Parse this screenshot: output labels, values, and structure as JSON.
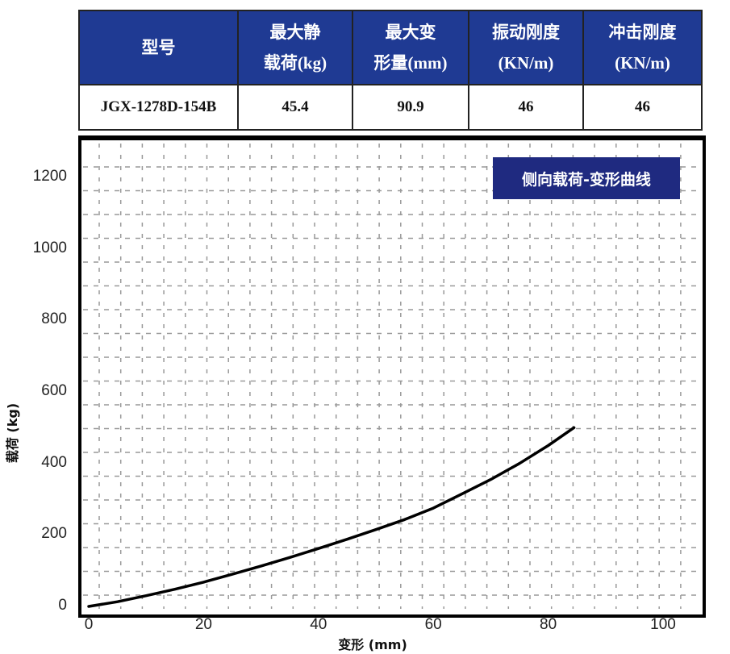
{
  "table": {
    "headers": [
      {
        "line1": "型号",
        "line2": ""
      },
      {
        "line1": "最大静",
        "line2": "载荷(kg)"
      },
      {
        "line1": "最大变",
        "line2": "形量(mm)"
      },
      {
        "line1": "振动刚度",
        "line2": "(KN/m)"
      },
      {
        "line1": "冲击刚度",
        "line2": "(KN/m)"
      }
    ],
    "row": [
      "JGX-1278D-154B",
      "45.4",
      "90.9",
      "46",
      "46"
    ]
  },
  "chart_data": {
    "type": "line",
    "title": "侧向载荷-变形曲线",
    "xlabel": "变形 (mm)",
    "ylabel": "载荷 (kg)",
    "xlim": [
      0,
      100
    ],
    "ylim": [
      0,
      1200
    ],
    "xticks": [
      "0",
      "20",
      "40",
      "60",
      "80",
      "100"
    ],
    "yticks": [
      "0",
      "200",
      "400",
      "600",
      "800",
      "1000",
      "1200"
    ],
    "grid": true,
    "legend_position": "top-right",
    "series": [
      {
        "name": "侧向载荷-变形曲线",
        "color": "#000000",
        "x": [
          0,
          5,
          10,
          15,
          20,
          25,
          30,
          35,
          40,
          45,
          50,
          55,
          60,
          65,
          70,
          75,
          80,
          84.5
        ],
        "y": [
          0,
          13,
          30,
          48,
          68,
          90,
          113,
          137,
          162,
          188,
          215,
          243,
          275,
          315,
          355,
          400,
          450,
          500
        ]
      }
    ]
  }
}
